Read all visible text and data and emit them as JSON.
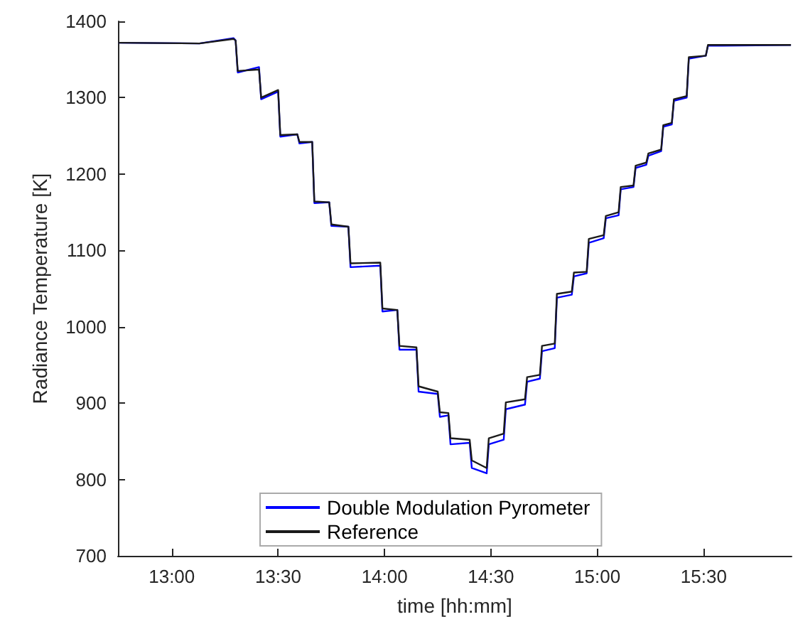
{
  "chart_data": {
    "type": "line",
    "xlabel": "time [hh:mm]",
    "ylabel": "Radiance Temperature [K]",
    "xlim": [
      12.747,
      15.913
    ],
    "ylim": [
      700,
      1400
    ],
    "xticks": [
      {
        "value": 13,
        "label": "13:00"
      },
      {
        "value": 13.5,
        "label": "13:30"
      },
      {
        "value": 14,
        "label": "14:00"
      },
      {
        "value": 14.5,
        "label": "14:30"
      },
      {
        "value": 15,
        "label": "15:00"
      },
      {
        "value": 15.5,
        "label": "15:30"
      }
    ],
    "yticks": [
      700,
      800,
      900,
      1000,
      1100,
      1200,
      1300,
      1400
    ],
    "grid": false,
    "legend": "bottom",
    "marker": "none",
    "line_style": "solid",
    "x": [
      12.75,
      13.13,
      13.29,
      13.3,
      13.31,
      13.41,
      13.42,
      13.5,
      13.51,
      13.59,
      13.6,
      13.66,
      13.67,
      13.74,
      13.75,
      13.83,
      13.84,
      13.98,
      13.99,
      14.06,
      14.07,
      14.15,
      14.16,
      14.25,
      14.26,
      14.3,
      14.31,
      14.4,
      14.41,
      14.48,
      14.49,
      14.56,
      14.57,
      14.66,
      14.67,
      14.73,
      14.74,
      14.8,
      14.81,
      14.88,
      14.89,
      14.95,
      14.96,
      15.03,
      15.04,
      15.1,
      15.11,
      15.17,
      15.18,
      15.23,
      15.24,
      15.3,
      15.31,
      15.35,
      15.36,
      15.42,
      15.43,
      15.51,
      15.52,
      15.91
    ],
    "series": [
      {
        "name": "Double Modulation Pyrometer",
        "color": "#0000ff",
        "values": [
          1372,
          1371,
          1378,
          1375,
          1333,
          1340,
          1298,
          1308,
          1249,
          1252,
          1240,
          1242,
          1162,
          1163,
          1132,
          1131,
          1078,
          1080,
          1020,
          1022,
          970,
          970,
          915,
          912,
          882,
          884,
          846,
          848,
          815,
          808,
          846,
          852,
          892,
          898,
          928,
          932,
          968,
          972,
          1038,
          1042,
          1066,
          1070,
          1110,
          1116,
          1142,
          1146,
          1180,
          1183,
          1208,
          1212,
          1224,
          1230,
          1262,
          1265,
          1296,
          1300,
          1351,
          1355,
          1368,
          1369
        ]
      },
      {
        "name": "Reference",
        "color": "#1a1a1a",
        "values": [
          1372,
          1371,
          1377,
          1375,
          1335,
          1337,
          1300,
          1310,
          1251,
          1252,
          1242,
          1242,
          1164,
          1163,
          1134,
          1131,
          1083,
          1084,
          1024,
          1022,
          975,
          973,
          922,
          915,
          888,
          887,
          854,
          852,
          825,
          815,
          854,
          860,
          901,
          905,
          934,
          937,
          975,
          978,
          1043,
          1046,
          1071,
          1072,
          1115,
          1120,
          1145,
          1150,
          1183,
          1185,
          1211,
          1215,
          1227,
          1232,
          1264,
          1267,
          1298,
          1302,
          1353,
          1355,
          1369,
          1369
        ]
      }
    ]
  }
}
